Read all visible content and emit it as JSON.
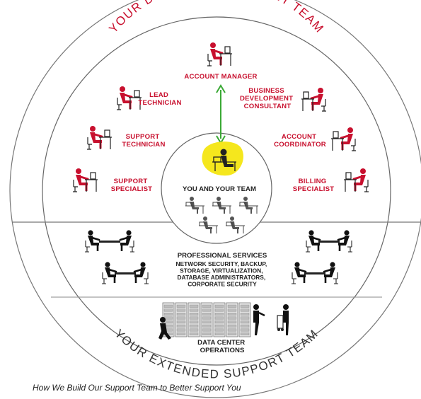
{
  "arc_titles": {
    "top": "YOUR DEDICATED ACCOUNT TEAM",
    "bottom": "YOUR EXTENDED SUPPORT TEAM"
  },
  "roles": {
    "account_manager": "ACCOUNT MANAGER",
    "lead_technician": [
      "LEAD",
      "TECHNICIAN"
    ],
    "business_development_consultant": [
      "BUSINESS",
      "DEVELOPMENT",
      "CONSULTANT"
    ],
    "support_technician": [
      "SUPPORT",
      "TECHNICIAN"
    ],
    "account_coordinator": [
      "ACCOUNT",
      "COORDINATOR"
    ],
    "support_specialist": [
      "SUPPORT",
      "SPECIALIST"
    ],
    "billing_specialist": [
      "BILLING",
      "SPECIALIST"
    ]
  },
  "center": {
    "label": "YOU AND YOUR TEAM"
  },
  "professional_services": {
    "title": "PROFESSIONAL SERVICES",
    "details": [
      "NETWORK SECURITY, BACKUP,",
      "STORAGE, VIRTUALIZATION,",
      "DATABASE ADMINISTRATORS,",
      "CORPORATE SECURITY"
    ]
  },
  "data_center": {
    "label": [
      "DATA CENTER",
      "OPERATIONS"
    ]
  },
  "caption": "How We Build Our Support Team to Better Support You",
  "colors": {
    "accent": "#c8102e",
    "highlight": "#f5e71d",
    "arrow": "#3aa935",
    "ink": "#222222"
  }
}
